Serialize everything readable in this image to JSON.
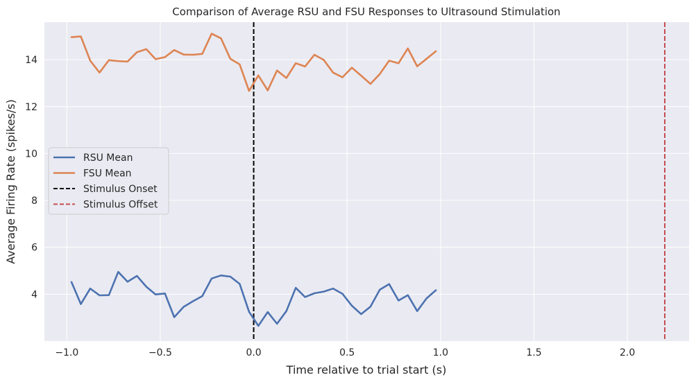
{
  "chart_data": {
    "type": "line",
    "title": "Comparison of Average RSU and FSU Responses to Ultrasound Stimulation",
    "xlabel": "Time relative to trial start (s)",
    "ylabel": "Average Firing Rate (spikes/s)",
    "xlim": [
      -1.12,
      2.33
    ],
    "ylim": [
      2.0,
      15.6
    ],
    "xticks": [
      -1.0,
      -0.5,
      0.0,
      0.5,
      1.0,
      1.5,
      2.0
    ],
    "xtick_labels": [
      "−1.0",
      "−0.5",
      "0.0",
      "0.5",
      "1.0",
      "1.5",
      "2.0"
    ],
    "yticks": [
      4,
      6,
      8,
      10,
      12,
      14
    ],
    "ytick_labels": [
      "4",
      "6",
      "8",
      "10",
      "12",
      "14"
    ],
    "grid": true,
    "legend_position": "center-left",
    "x": [
      -0.975,
      -0.925,
      -0.875,
      -0.825,
      -0.775,
      -0.725,
      -0.675,
      -0.625,
      -0.575,
      -0.525,
      -0.475,
      -0.425,
      -0.375,
      -0.325,
      -0.275,
      -0.225,
      -0.175,
      -0.125,
      -0.075,
      -0.025,
      0.025,
      0.075,
      0.125,
      0.175,
      0.225,
      0.275,
      0.325,
      0.375,
      0.425,
      0.475,
      0.525,
      0.575,
      0.625,
      0.675,
      0.725,
      0.775,
      0.825,
      0.875,
      0.925,
      0.975
    ],
    "series": [
      {
        "name": "RSU Mean",
        "color": "#4c72b0",
        "values": [
          4.52,
          3.58,
          4.24,
          3.95,
          3.96,
          4.95,
          4.53,
          4.78,
          4.32,
          3.99,
          4.03,
          3.02,
          3.46,
          3.7,
          3.92,
          4.67,
          4.8,
          4.75,
          4.44,
          3.25,
          2.65,
          3.24,
          2.74,
          3.28,
          4.27,
          3.88,
          4.04,
          4.11,
          4.24,
          4.02,
          3.51,
          3.15,
          3.47,
          4.19,
          4.43,
          3.73,
          3.96,
          3.28,
          3.82,
          4.17
        ]
      },
      {
        "name": "FSU Mean",
        "color": "#dd8452",
        "values": [
          14.96,
          14.99,
          13.96,
          13.45,
          13.98,
          13.94,
          13.92,
          14.32,
          14.45,
          14.02,
          14.11,
          14.41,
          14.22,
          14.21,
          14.25,
          15.11,
          14.91,
          14.04,
          13.8,
          12.67,
          13.33,
          12.69,
          13.54,
          13.22,
          13.85,
          13.71,
          14.21,
          13.99,
          13.45,
          13.25,
          13.66,
          13.32,
          12.97,
          13.39,
          13.96,
          13.85,
          14.48,
          13.72,
          14.04,
          14.36
        ]
      }
    ],
    "vlines": [
      {
        "name": "Stimulus Onset",
        "x": 0.0,
        "color": "#000000",
        "style": "dashed"
      },
      {
        "name": "Stimulus Offset",
        "x": 2.2,
        "color": "#c44e52",
        "style": "dashed"
      }
    ],
    "colors": {
      "plot_background": "#eaeaf2",
      "grid": "#ffffff",
      "text": "#262626"
    }
  }
}
